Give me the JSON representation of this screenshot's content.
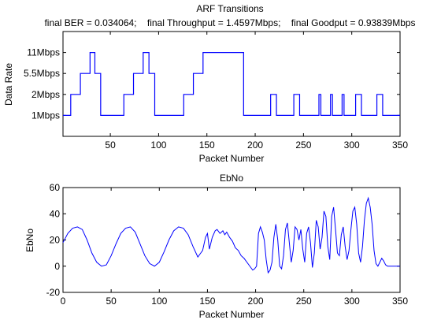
{
  "figure": {
    "top_title_line1": "ARF Transitions",
    "top_title_line2": "final BER = 0.034064;    final Throughput = 1.4597Mbps;    final Goodput = 0.93839Mbps",
    "line_color": "#0000ff"
  },
  "chart_data": [
    {
      "type": "line",
      "title": "ARF Transitions",
      "subtitle": "final BER = 0.034064;    final Throughput = 1.4597Mbps;    final Goodput = 0.93839Mbps",
      "xlabel": "Packet Number",
      "ylabel": "Data Rate",
      "xlim": [
        1,
        350
      ],
      "ylim": [
        0,
        5
      ],
      "xticks": [
        50,
        100,
        150,
        200,
        250,
        300,
        350
      ],
      "yticks": [
        1,
        2,
        3,
        4
      ],
      "ytick_labels": [
        "1Mbps",
        "2Mbps",
        "5.5Mbps",
        "11Mbps"
      ],
      "grid": false,
      "series": [
        {
          "x": [
            1,
            9,
            9,
            19,
            19,
            29,
            29,
            34,
            34,
            40,
            40,
            64,
            64,
            74,
            74,
            84,
            84,
            90,
            90,
            96,
            96,
            104,
            104,
            126,
            126,
            136,
            136,
            146,
            146,
            152,
            152,
            188,
            188,
            216,
            216,
            222,
            222,
            240,
            240,
            246,
            246,
            266,
            266,
            268,
            268,
            278,
            278,
            280,
            280,
            290,
            290,
            292,
            292,
            304,
            304,
            310,
            310,
            326,
            326,
            332,
            332,
            350
          ],
          "y": [
            1,
            1,
            2,
            2,
            3,
            3,
            4,
            4,
            3,
            3,
            1,
            1,
            2,
            2,
            3,
            3,
            4,
            4,
            3,
            3,
            1,
            1,
            1,
            1,
            2,
            2,
            3,
            3,
            4,
            4,
            4,
            4,
            1,
            1,
            2,
            2,
            1,
            1,
            2,
            2,
            1,
            1,
            2,
            2,
            1,
            1,
            2,
            2,
            1,
            1,
            2,
            2,
            1,
            1,
            2,
            2,
            1,
            1,
            2,
            2,
            1,
            1
          ]
        }
      ]
    },
    {
      "type": "line",
      "title": "EbNo",
      "xlabel": "Packet Number",
      "ylabel": "EbNo",
      "xlim": [
        0,
        350
      ],
      "ylim": [
        -20,
        60
      ],
      "xticks": [
        0,
        50,
        100,
        150,
        200,
        250,
        300,
        350
      ],
      "yticks": [
        -20,
        0,
        20,
        40,
        60
      ],
      "grid": false,
      "series": [
        {
          "x": [
            0,
            5,
            10,
            15,
            20,
            25,
            30,
            35,
            40,
            45,
            50,
            55,
            60,
            65,
            70,
            75,
            80,
            85,
            90,
            95,
            100,
            105,
            110,
            115,
            120,
            125,
            130,
            135,
            140,
            145,
            148,
            150,
            152,
            155,
            158,
            160,
            163,
            166,
            168,
            170,
            173,
            176,
            179,
            182,
            185,
            188,
            191,
            194,
            197,
            199,
            201,
            203,
            205,
            207,
            209,
            211,
            213,
            215,
            217,
            219,
            221,
            223,
            225,
            227,
            229,
            231,
            233,
            235,
            237,
            239,
            241,
            243,
            245,
            247,
            249,
            251,
            253,
            255,
            257,
            259,
            261,
            263,
            265,
            267,
            269,
            271,
            273,
            275,
            277,
            279,
            281,
            283,
            285,
            287,
            289,
            291,
            293,
            295,
            297,
            299,
            301,
            303,
            305,
            307,
            309,
            311,
            313,
            315,
            317,
            319,
            321,
            323,
            325,
            327,
            329,
            331,
            333,
            335,
            337,
            339,
            341,
            343,
            345,
            347,
            350
          ],
          "y": [
            18,
            25,
            29,
            30,
            28,
            20,
            10,
            3,
            0,
            1,
            8,
            17,
            25,
            29,
            30,
            26,
            17,
            8,
            2,
            0,
            3,
            11,
            20,
            27,
            30,
            29,
            24,
            15,
            7,
            12,
            22,
            25,
            13,
            22,
            27,
            28,
            25,
            27,
            24,
            26,
            22,
            19,
            14,
            12,
            8,
            6,
            3,
            0,
            -3,
            -2,
            0,
            25,
            30,
            26,
            20,
            5,
            -5,
            -3,
            3,
            22,
            32,
            20,
            0,
            -2,
            8,
            28,
            33,
            18,
            3,
            12,
            30,
            28,
            20,
            28,
            13,
            3,
            25,
            30,
            18,
            -1,
            10,
            35,
            30,
            13,
            22,
            42,
            38,
            15,
            5,
            38,
            45,
            28,
            10,
            8,
            24,
            30,
            15,
            5,
            12,
            28,
            42,
            45,
            32,
            10,
            3,
            15,
            35,
            48,
            52,
            45,
            32,
            12,
            2,
            0,
            3,
            6,
            4,
            1,
            0,
            0,
            0,
            0,
            0,
            0,
            0
          ]
        }
      ]
    }
  ]
}
